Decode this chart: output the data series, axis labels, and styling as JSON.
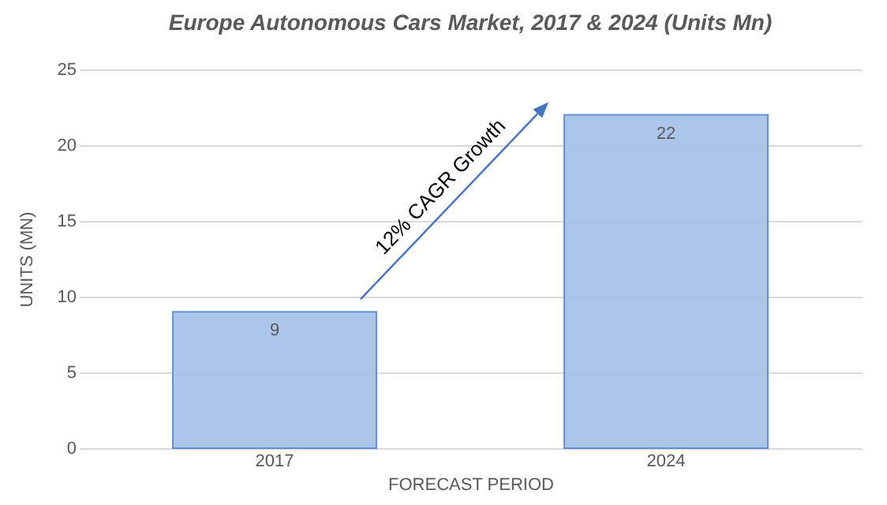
{
  "chart_data": {
    "type": "bar",
    "title": "Europe  Autonomous  Cars  Market, 2017 & 2024 (Units Mn)",
    "xlabel": "FORECAST PERIOD",
    "ylabel": "UNITS (MN)",
    "categories": [
      "2017",
      "2024"
    ],
    "series": [
      {
        "color": "#a7c3e8",
        "values": [
          9,
          22
        ]
      }
    ],
    "ylim": [
      0,
      25
    ],
    "yticks": [
      0,
      5,
      10,
      15,
      20,
      25
    ],
    "grid": "y",
    "data_labels": true,
    "annotations": [
      "12% CAGR Growth"
    ]
  }
}
